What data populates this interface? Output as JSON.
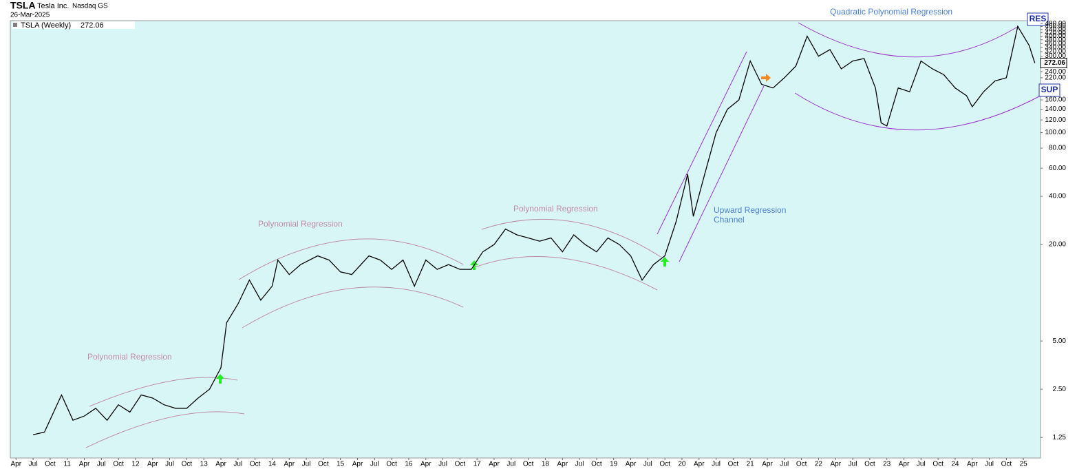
{
  "chart_data": {
    "type": "line",
    "title": "TSLA",
    "subtitle": "Tesla Inc.",
    "exchange": "Nasdaq GS",
    "date": "26-Mar-2025",
    "log_scale": true,
    "grid": false,
    "x": [
      "2010-07",
      "2010-09",
      "2010-12",
      "2011-02",
      "2011-04",
      "2011-06",
      "2011-08",
      "2011-10",
      "2011-12",
      "2012-02",
      "2012-04",
      "2012-06",
      "2012-08",
      "2012-10",
      "2012-12",
      "2013-02",
      "2013-04",
      "2013-05",
      "2013-07",
      "2013-09",
      "2013-11",
      "2014-01",
      "2014-02",
      "2014-04",
      "2014-06",
      "2014-09",
      "2014-11",
      "2015-01",
      "2015-03",
      "2015-06",
      "2015-08",
      "2015-10",
      "2015-12",
      "2016-02",
      "2016-04",
      "2016-06",
      "2016-08",
      "2016-10",
      "2016-12",
      "2017-02",
      "2017-04",
      "2017-06",
      "2017-08",
      "2017-10",
      "2017-12",
      "2018-02",
      "2018-04",
      "2018-06",
      "2018-08",
      "2018-10",
      "2018-12",
      "2019-02",
      "2019-04",
      "2019-06",
      "2019-08",
      "2019-10",
      "2019-12",
      "2020-02",
      "2020-03",
      "2020-05",
      "2020-07",
      "2020-09",
      "2020-11",
      "2021-01",
      "2021-03",
      "2021-05",
      "2021-07",
      "2021-09",
      "2021-11",
      "2022-01",
      "2022-03",
      "2022-05",
      "2022-07",
      "2022-09",
      "2022-11",
      "2022-12",
      "2023-01",
      "2023-03",
      "2023-05",
      "2023-07",
      "2023-09",
      "2023-11",
      "2024-01",
      "2024-03",
      "2024-04",
      "2024-06",
      "2024-08",
      "2024-10",
      "2024-12",
      "2025-02",
      "2025-03"
    ],
    "series": [
      {
        "name": "TSLA (Weekly)",
        "color": "#000000",
        "values": [
          1.3,
          1.35,
          2.3,
          1.6,
          1.7,
          1.9,
          1.6,
          2.0,
          1.8,
          2.3,
          2.2,
          2.0,
          1.9,
          1.9,
          2.2,
          2.5,
          3.4,
          6.5,
          8.5,
          12,
          9,
          11,
          16,
          13,
          15,
          17,
          16,
          13.5,
          13,
          17,
          16,
          14,
          16,
          11,
          16,
          14,
          15,
          14,
          14,
          18,
          20,
          25,
          23,
          22,
          21,
          22,
          18,
          23,
          20,
          18,
          22,
          20,
          17,
          12,
          15,
          17,
          28,
          55,
          30,
          55,
          100,
          140,
          160,
          280,
          200,
          190,
          220,
          260,
          400,
          300,
          330,
          250,
          280,
          290,
          190,
          115,
          110,
          190,
          180,
          280,
          250,
          230,
          190,
          170,
          145,
          180,
          210,
          220,
          460,
          350,
          272.06
        ]
      }
    ],
    "xlim": [
      "2010-03",
      "2025-04"
    ],
    "ylim": [
      0.93,
      500
    ],
    "yticks": [
      {
        "value": 1.25,
        "label": "1.25"
      },
      {
        "value": 2.5,
        "label": "2.50"
      },
      {
        "value": 5,
        "label": "5.00"
      },
      {
        "value": 20,
        "label": "20.00"
      },
      {
        "value": 40,
        "label": "40.00"
      },
      {
        "value": 60,
        "label": "60.00"
      },
      {
        "value": 80,
        "label": "80.00"
      },
      {
        "value": 100,
        "label": "100.00"
      },
      {
        "value": 120,
        "label": "120.00"
      },
      {
        "value": 140,
        "label": "140.00"
      },
      {
        "value": 160,
        "label": "160.00"
      },
      {
        "value": 220,
        "label": "220.00"
      },
      {
        "value": 240,
        "label": "240.00"
      },
      {
        "value": 300,
        "label": "300.00"
      },
      {
        "value": 320,
        "label": "320.00"
      },
      {
        "value": 340,
        "label": "340.00"
      },
      {
        "value": 360,
        "label": "360.00"
      },
      {
        "value": 380,
        "label": "380.00"
      },
      {
        "value": 400,
        "label": "400.00"
      },
      {
        "value": 420,
        "label": "420.00"
      },
      {
        "value": 440,
        "label": "440.00"
      },
      {
        "value": 460,
        "label": "460.00"
      },
      {
        "value": 480,
        "label": "480.00"
      }
    ],
    "xticks": [
      {
        "value": "2010-04",
        "label": "Apr"
      },
      {
        "value": "2010-07",
        "label": "Jul"
      },
      {
        "value": "2010-10",
        "label": "Oct"
      },
      {
        "value": "2011-01",
        "label": "11"
      },
      {
        "value": "2011-04",
        "label": "Apr"
      },
      {
        "value": "2011-07",
        "label": "Jul"
      },
      {
        "value": "2011-10",
        "label": "Oct"
      },
      {
        "value": "2012-01",
        "label": "12"
      },
      {
        "value": "2012-04",
        "label": "Apr"
      },
      {
        "value": "2012-07",
        "label": "Jul"
      },
      {
        "value": "2012-10",
        "label": "Oct"
      },
      {
        "value": "2013-01",
        "label": "13"
      },
      {
        "value": "2013-04",
        "label": "Apr"
      },
      {
        "value": "2013-07",
        "label": "Jul"
      },
      {
        "value": "2013-10",
        "label": "Oct"
      },
      {
        "value": "2014-01",
        "label": "14"
      },
      {
        "value": "2014-04",
        "label": "Apr"
      },
      {
        "value": "2014-07",
        "label": "Jul"
      },
      {
        "value": "2014-10",
        "label": "Oct"
      },
      {
        "value": "2015-01",
        "label": "15"
      },
      {
        "value": "2015-04",
        "label": "Apr"
      },
      {
        "value": "2015-07",
        "label": "Jul"
      },
      {
        "value": "2015-10",
        "label": "Oct"
      },
      {
        "value": "2016-01",
        "label": "16"
      },
      {
        "value": "2016-04",
        "label": "Apr"
      },
      {
        "value": "2016-07",
        "label": "Jul"
      },
      {
        "value": "2016-10",
        "label": "Oct"
      },
      {
        "value": "2017-01",
        "label": "17"
      },
      {
        "value": "2017-04",
        "label": "Apr"
      },
      {
        "value": "2017-07",
        "label": "Jul"
      },
      {
        "value": "2017-10",
        "label": "Oct"
      },
      {
        "value": "2018-01",
        "label": "18"
      },
      {
        "value": "2018-04",
        "label": "Apr"
      },
      {
        "value": "2018-07",
        "label": "Jul"
      },
      {
        "value": "2018-10",
        "label": "Oct"
      },
      {
        "value": "2019-01",
        "label": "19"
      },
      {
        "value": "2019-04",
        "label": "Apr"
      },
      {
        "value": "2019-07",
        "label": "Jul"
      },
      {
        "value": "2019-10",
        "label": "Oct"
      },
      {
        "value": "2020-01",
        "label": "20"
      },
      {
        "value": "2020-04",
        "label": "Apr"
      },
      {
        "value": "2020-07",
        "label": "Jul"
      },
      {
        "value": "2020-10",
        "label": "Oct"
      },
      {
        "value": "2021-01",
        "label": "21"
      },
      {
        "value": "2021-04",
        "label": "Apr"
      },
      {
        "value": "2021-07",
        "label": "Jul"
      },
      {
        "value": "2021-10",
        "label": "Oct"
      },
      {
        "value": "2022-01",
        "label": "22"
      },
      {
        "value": "2022-04",
        "label": "Apr"
      },
      {
        "value": "2022-07",
        "label": "Jul"
      },
      {
        "value": "2022-10",
        "label": "Oct"
      },
      {
        "value": "2023-01",
        "label": "23"
      },
      {
        "value": "2023-04",
        "label": "Apr"
      },
      {
        "value": "2023-07",
        "label": "Jul"
      },
      {
        "value": "2023-10",
        "label": "Oct"
      },
      {
        "value": "2024-01",
        "label": "24"
      },
      {
        "value": "2024-04",
        "label": "Apr"
      },
      {
        "value": "2024-07",
        "label": "Jul"
      },
      {
        "value": "2024-10",
        "label": "Oct"
      },
      {
        "value": "2025-01",
        "label": "25"
      }
    ],
    "annotations": [
      "Polynomial Regression",
      "Polynomial Regression",
      "Polynomial Regression",
      "Upward Regression",
      "Channel",
      "Quadratic Polynomial Regression",
      "RES",
      "SUP"
    ]
  }
}
